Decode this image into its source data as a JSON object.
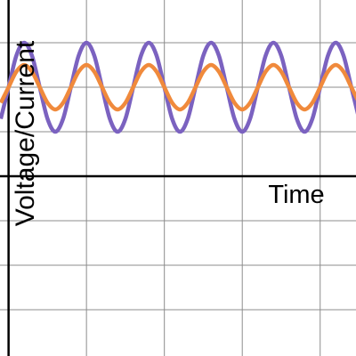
{
  "chart_data": {
    "type": "line",
    "x_label": "Time",
    "y_label": "Voltage/Current",
    "x": [
      -0.1,
      0,
      0.1,
      0.2,
      0.3,
      0.4,
      0.5,
      0.6,
      0.7,
      0.8,
      0.9,
      1,
      1.1,
      1.2,
      1.3,
      1.4,
      1.5,
      1.6,
      1.7,
      1.8,
      1.9,
      2,
      2.1,
      2.2,
      2.3,
      2.4,
      2.5,
      2.6,
      2.7,
      2.8,
      2.9,
      3,
      3.1,
      3.2,
      3.3,
      3.4,
      3.5,
      3.6,
      3.7,
      3.8,
      3.9,
      4,
      4.1,
      4.2,
      4.3,
      4.4,
      4.5
    ],
    "series": [
      {
        "color": "#7b62c0",
        "values": [
          1.29,
          2,
          2.71,
          3,
          2.71,
          2,
          1.29,
          1,
          1.29,
          2,
          2.71,
          3,
          2.71,
          2,
          1.29,
          1,
          1.29,
          2,
          2.71,
          3,
          2.71,
          2,
          1.29,
          1,
          1.29,
          2,
          2.71,
          3,
          2.71,
          2,
          1.29,
          1,
          1.29,
          2,
          2.71,
          3,
          2.71,
          2,
          1.29,
          1,
          1.29,
          2,
          2.71,
          3,
          2.71,
          2,
          1.29
        ]
      },
      {
        "color": "#f08a3c",
        "values": [
          1.65,
          2,
          2.35,
          2.5,
          2.35,
          2,
          1.65,
          1.5,
          1.65,
          2,
          2.35,
          2.5,
          2.35,
          2,
          1.65,
          1.5,
          1.65,
          2,
          2.35,
          2.5,
          2.35,
          2,
          1.65,
          1.5,
          1.65,
          2,
          2.35,
          2.5,
          2.35,
          2,
          1.65,
          1.5,
          1.65,
          2,
          2.35,
          2.5,
          2.35,
          2,
          1.65,
          1.5,
          1.65,
          2,
          2.35,
          2.5,
          2.35,
          2,
          1.65
        ]
      }
    ],
    "xlim": [
      -0.11,
      4.46
    ],
    "ylim": [
      -4.04,
      3.96
    ],
    "xticks": [
      0,
      1,
      2,
      3,
      4
    ],
    "yticks": [
      -3,
      -2,
      -1,
      0,
      1,
      2,
      3
    ],
    "grid": true
  }
}
